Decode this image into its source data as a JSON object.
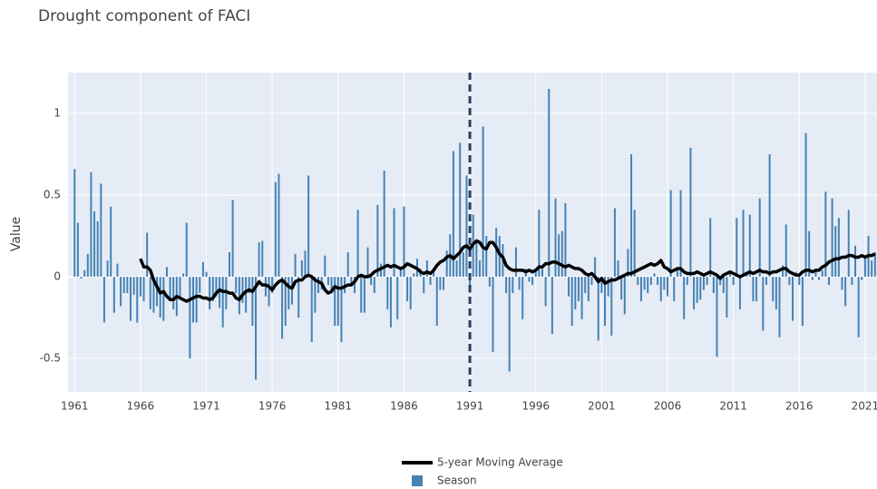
{
  "chart_data": {
    "type": "bar_line",
    "title": "Drought component of FACI",
    "y_label": "Value",
    "xlim": [
      1960.5,
      2021.9
    ],
    "ylim": [
      -0.705,
      1.25
    ],
    "xticks": [
      1961,
      1966,
      1971,
      1976,
      1981,
      1986,
      1991,
      1996,
      2001,
      2006,
      2011,
      2016,
      2021
    ],
    "yticks": [
      -0.5,
      0,
      0.5,
      1
    ],
    "grid": true,
    "vline": 1991,
    "vline_color": "#2a3f5f",
    "legend": "bottom",
    "x": [
      1961,
      1961.25,
      1961.5,
      1961.75,
      1962,
      1962.25,
      1962.5,
      1962.75,
      1963,
      1963.25,
      1963.5,
      1963.75,
      1964,
      1964.25,
      1964.5,
      1964.75,
      1965,
      1965.25,
      1965.5,
      1965.75,
      1966,
      1966.25,
      1966.5,
      1966.75,
      1967,
      1967.25,
      1967.5,
      1967.75,
      1968,
      1968.25,
      1968.5,
      1968.75,
      1969,
      1969.25,
      1969.5,
      1969.75,
      1970,
      1970.25,
      1970.5,
      1970.75,
      1971,
      1971.25,
      1971.5,
      1971.75,
      1972,
      1972.25,
      1972.5,
      1972.75,
      1973,
      1973.25,
      1973.5,
      1973.75,
      1974,
      1974.25,
      1974.5,
      1974.75,
      1975,
      1975.25,
      1975.5,
      1975.75,
      1976,
      1976.25,
      1976.5,
      1976.75,
      1977,
      1977.25,
      1977.5,
      1977.75,
      1978,
      1978.25,
      1978.5,
      1978.75,
      1979,
      1979.25,
      1979.5,
      1979.75,
      1980,
      1980.25,
      1980.5,
      1980.75,
      1981,
      1981.25,
      1981.5,
      1981.75,
      1982,
      1982.25,
      1982.5,
      1982.75,
      1983,
      1983.25,
      1983.5,
      1983.75,
      1984,
      1984.25,
      1984.5,
      1984.75,
      1985,
      1985.25,
      1985.5,
      1985.75,
      1986,
      1986.25,
      1986.5,
      1986.75,
      1987,
      1987.25,
      1987.5,
      1987.75,
      1988,
      1988.25,
      1988.5,
      1988.75,
      1989,
      1989.25,
      1989.5,
      1989.75,
      1990,
      1990.25,
      1990.5,
      1990.75,
      1991,
      1991.25,
      1991.5,
      1991.75,
      1992,
      1992.25,
      1992.5,
      1992.75,
      1993,
      1993.25,
      1993.5,
      1993.75,
      1994,
      1994.25,
      1994.5,
      1994.75,
      1995,
      1995.25,
      1995.5,
      1995.75,
      1996,
      1996.25,
      1996.5,
      1996.75,
      1997,
      1997.25,
      1997.5,
      1997.75,
      1998,
      1998.25,
      1998.5,
      1998.75,
      1999,
      1999.25,
      1999.5,
      1999.75,
      2000,
      2000.25,
      2000.5,
      2000.75,
      2001,
      2001.25,
      2001.5,
      2001.75,
      2002,
      2002.25,
      2002.5,
      2002.75,
      2003,
      2003.25,
      2003.5,
      2003.75,
      2004,
      2004.25,
      2004.5,
      2004.75,
      2005,
      2005.25,
      2005.5,
      2005.75,
      2006,
      2006.25,
      2006.5,
      2006.75,
      2007,
      2007.25,
      2007.5,
      2007.75,
      2008,
      2008.25,
      2008.5,
      2008.75,
      2009,
      2009.25,
      2009.5,
      2009.75,
      2010,
      2010.25,
      2010.5,
      2010.75,
      2011,
      2011.25,
      2011.5,
      2011.75,
      2012,
      2012.25,
      2012.5,
      2012.75,
      2013,
      2013.25,
      2013.5,
      2013.75,
      2014,
      2014.25,
      2014.5,
      2014.75,
      2015,
      2015.25,
      2015.5,
      2015.75,
      2016,
      2016.25,
      2016.5,
      2016.75,
      2017,
      2017.25,
      2017.5,
      2017.75,
      2018,
      2018.25,
      2018.5,
      2018.75,
      2019,
      2019.25,
      2019.5,
      2019.75,
      2020,
      2020.25,
      2020.5,
      2020.75,
      2021,
      2021.25,
      2021.5,
      2021.75
    ],
    "series": [
      {
        "name": "5-year Moving Average",
        "type": "line",
        "color": "#000000",
        "values": [
          null,
          null,
          null,
          null,
          null,
          null,
          null,
          null,
          null,
          null,
          null,
          null,
          null,
          null,
          null,
          null,
          null,
          null,
          null,
          null,
          0.11,
          0.06,
          0.06,
          0.04,
          -0.02,
          -0.06,
          -0.1,
          -0.09,
          -0.12,
          -0.14,
          -0.14,
          -0.12,
          -0.13,
          -0.14,
          -0.15,
          -0.14,
          -0.13,
          -0.12,
          -0.12,
          -0.13,
          -0.13,
          -0.14,
          -0.13,
          -0.1,
          -0.08,
          -0.09,
          -0.09,
          -0.1,
          -0.1,
          -0.13,
          -0.14,
          -0.11,
          -0.09,
          -0.08,
          -0.09,
          -0.06,
          -0.03,
          -0.05,
          -0.05,
          -0.06,
          -0.08,
          -0.05,
          -0.03,
          -0.02,
          -0.04,
          -0.06,
          -0.07,
          -0.03,
          -0.02,
          -0.02,
          0.0,
          0.01,
          0.0,
          -0.02,
          -0.03,
          -0.04,
          -0.08,
          -0.1,
          -0.09,
          -0.06,
          -0.07,
          -0.07,
          -0.06,
          -0.05,
          -0.05,
          -0.03,
          0.0,
          0.01,
          0.0,
          0.0,
          0.01,
          0.03,
          0.04,
          0.05,
          0.06,
          0.07,
          0.06,
          0.07,
          0.06,
          0.05,
          0.06,
          0.08,
          0.07,
          0.06,
          0.05,
          0.03,
          0.02,
          0.03,
          0.02,
          0.04,
          0.07,
          0.09,
          0.1,
          0.12,
          0.13,
          0.11,
          0.13,
          0.15,
          0.18,
          0.19,
          0.17,
          0.2,
          0.22,
          0.21,
          0.18,
          0.17,
          0.21,
          0.21,
          0.18,
          0.14,
          0.12,
          0.07,
          0.05,
          0.04,
          0.04,
          0.04,
          0.04,
          0.03,
          0.04,
          0.03,
          0.04,
          0.06,
          0.06,
          0.08,
          0.08,
          0.09,
          0.09,
          0.08,
          0.07,
          0.06,
          0.07,
          0.06,
          0.05,
          0.05,
          0.04,
          0.02,
          0.01,
          0.02,
          0.0,
          -0.03,
          -0.01,
          -0.04,
          -0.03,
          -0.02,
          -0.02,
          -0.01,
          0.0,
          0.01,
          0.02,
          0.02,
          0.03,
          0.04,
          0.05,
          0.06,
          0.07,
          0.08,
          0.07,
          0.08,
          0.1,
          0.06,
          0.05,
          0.03,
          0.04,
          0.05,
          0.05,
          0.03,
          0.02,
          0.02,
          0.02,
          0.03,
          0.02,
          0.01,
          0.02,
          0.03,
          0.02,
          0.01,
          -0.01,
          0.01,
          0.02,
          0.03,
          0.02,
          0.01,
          0.0,
          0.01,
          0.02,
          0.03,
          0.02,
          0.03,
          0.04,
          0.03,
          0.03,
          0.02,
          0.03,
          0.03,
          0.04,
          0.05,
          0.05,
          0.03,
          0.02,
          0.01,
          0.01,
          0.03,
          0.04,
          0.04,
          0.03,
          0.04,
          0.04,
          0.06,
          0.07,
          0.09,
          0.1,
          0.11,
          0.11,
          0.12,
          0.12,
          0.13,
          0.13,
          0.12,
          0.12,
          0.13,
          0.12,
          0.13,
          0.13,
          0.14
        ]
      },
      {
        "name": "Season",
        "type": "bar",
        "color": "#4682b4",
        "values": [
          0.66,
          0.33,
          -0.01,
          0.04,
          0.14,
          0.64,
          0.4,
          0.34,
          0.57,
          -0.28,
          0.1,
          0.43,
          -0.22,
          0.08,
          -0.18,
          -0.1,
          -0.1,
          -0.27,
          -0.11,
          -0.28,
          -0.12,
          -0.15,
          0.27,
          -0.2,
          -0.22,
          -0.18,
          -0.25,
          -0.27,
          0.06,
          -0.15,
          -0.2,
          -0.24,
          -0.12,
          0.02,
          0.33,
          -0.5,
          -0.28,
          -0.28,
          -0.1,
          0.09,
          0.03,
          -0.2,
          -0.15,
          -0.12,
          -0.19,
          -0.31,
          -0.2,
          0.15,
          0.47,
          -0.1,
          -0.23,
          -0.16,
          -0.22,
          -0.1,
          -0.3,
          -0.63,
          0.21,
          0.22,
          -0.12,
          -0.18,
          -0.1,
          0.58,
          0.63,
          -0.38,
          -0.3,
          -0.2,
          -0.17,
          0.14,
          -0.25,
          0.1,
          0.16,
          0.62,
          -0.4,
          -0.22,
          -0.1,
          -0.08,
          0.13,
          -0.05,
          -0.1,
          -0.3,
          -0.3,
          -0.4,
          -0.1,
          0.15,
          -0.05,
          -0.1,
          0.41,
          -0.22,
          -0.22,
          0.18,
          -0.05,
          -0.1,
          0.44,
          0.08,
          0.65,
          -0.2,
          -0.31,
          0.42,
          -0.26,
          0.05,
          0.43,
          -0.15,
          -0.2,
          0.02,
          0.11,
          0.05,
          -0.1,
          0.1,
          -0.05,
          0.03,
          -0.3,
          -0.08,
          -0.08,
          0.16,
          0.26,
          0.77,
          0.1,
          0.82,
          0.15,
          0.62,
          -0.1,
          0.38,
          0.22,
          0.1,
          0.92,
          0.25,
          -0.06,
          -0.46,
          0.3,
          0.25,
          0.2,
          -0.1,
          -0.58,
          -0.1,
          0.18,
          -0.08,
          -0.26,
          0.05,
          -0.03,
          -0.05,
          0.04,
          0.41,
          0.05,
          -0.18,
          1.15,
          -0.35,
          0.48,
          0.26,
          0.28,
          0.45,
          -0.12,
          -0.3,
          -0.2,
          -0.15,
          -0.26,
          -0.1,
          -0.15,
          -0.05,
          0.12,
          -0.39,
          -0.1,
          -0.3,
          -0.12,
          -0.36,
          0.42,
          0.1,
          -0.14,
          -0.23,
          0.17,
          0.75,
          0.41,
          -0.05,
          -0.15,
          -0.08,
          -0.1,
          -0.05,
          0.02,
          -0.05,
          -0.15,
          -0.08,
          -0.12,
          0.53,
          -0.15,
          0.05,
          0.53,
          -0.26,
          -0.05,
          0.79,
          -0.2,
          -0.16,
          -0.14,
          -0.08,
          -0.05,
          0.36,
          -0.1,
          -0.49,
          -0.05,
          -0.1,
          -0.25,
          0.03,
          -0.05,
          0.36,
          -0.2,
          0.41,
          0.03,
          0.38,
          -0.15,
          -0.15,
          0.48,
          -0.33,
          -0.05,
          0.75,
          -0.15,
          -0.2,
          -0.37,
          0.07,
          0.32,
          -0.05,
          -0.27,
          0.03,
          -0.05,
          -0.3,
          0.88,
          0.28,
          -0.02,
          0.04,
          -0.02,
          0.04,
          0.52,
          -0.05,
          0.48,
          0.31,
          0.36,
          -0.08,
          -0.18,
          0.41,
          -0.05,
          0.19,
          -0.37,
          -0.02,
          0.12,
          0.25,
          0.1,
          0.15
        ]
      }
    ]
  }
}
